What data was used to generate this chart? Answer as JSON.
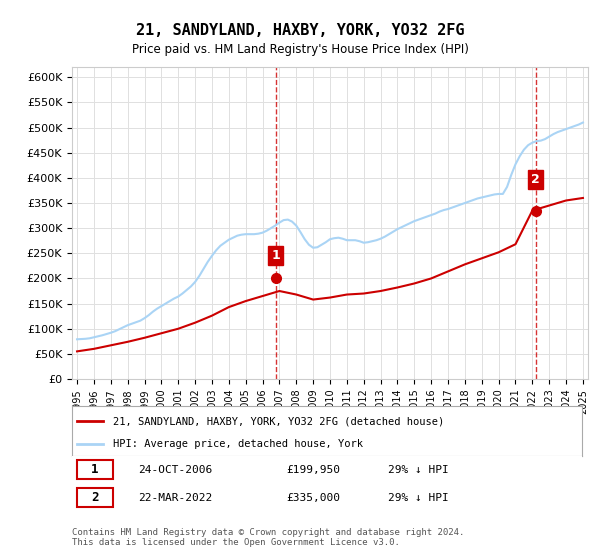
{
  "title": "21, SANDYLAND, HAXBY, YORK, YO32 2FG",
  "subtitle": "Price paid vs. HM Land Registry's House Price Index (HPI)",
  "xlabel": "",
  "ylabel": "",
  "ylim": [
    0,
    620000
  ],
  "yticks": [
    0,
    50000,
    100000,
    150000,
    200000,
    250000,
    300000,
    350000,
    400000,
    450000,
    500000,
    550000,
    600000
  ],
  "ytick_labels": [
    "£0",
    "£50K",
    "£100K",
    "£150K",
    "£200K",
    "£250K",
    "£300K",
    "£350K",
    "£400K",
    "£450K",
    "£500K",
    "£550K",
    "£600K"
  ],
  "hpi_color": "#aad4f5",
  "price_color": "#cc0000",
  "annotation1_color": "#cc0000",
  "annotation2_color": "#cc0000",
  "vline_color": "#cc0000",
  "legend_line1": "21, SANDYLAND, HAXBY, YORK, YO32 2FG (detached house)",
  "legend_line2": "HPI: Average price, detached house, York",
  "table_row1": [
    "1",
    "24-OCT-2006",
    "£199,950",
    "29% ↓ HPI"
  ],
  "table_row2": [
    "2",
    "22-MAR-2022",
    "£335,000",
    "29% ↓ HPI"
  ],
  "footnote": "Contains HM Land Registry data © Crown copyright and database right 2024.\nThis data is licensed under the Open Government Licence v3.0.",
  "x_start_year": 1995,
  "x_end_year": 2025,
  "sale1_year": 2006.82,
  "sale1_price": 199950,
  "sale2_year": 2022.23,
  "sale2_price": 335000,
  "background_color": "#ffffff",
  "plot_bg_color": "#ffffff",
  "grid_color": "#e0e0e0",
  "hpi_data_years": [
    1995.0,
    1995.25,
    1995.5,
    1995.75,
    1996.0,
    1996.25,
    1996.5,
    1996.75,
    1997.0,
    1997.25,
    1997.5,
    1997.75,
    1998.0,
    1998.25,
    1998.5,
    1998.75,
    1999.0,
    1999.25,
    1999.5,
    1999.75,
    2000.0,
    2000.25,
    2000.5,
    2000.75,
    2001.0,
    2001.25,
    2001.5,
    2001.75,
    2002.0,
    2002.25,
    2002.5,
    2002.75,
    2003.0,
    2003.25,
    2003.5,
    2003.75,
    2004.0,
    2004.25,
    2004.5,
    2004.75,
    2005.0,
    2005.25,
    2005.5,
    2005.75,
    2006.0,
    2006.25,
    2006.5,
    2006.75,
    2007.0,
    2007.25,
    2007.5,
    2007.75,
    2008.0,
    2008.25,
    2008.5,
    2008.75,
    2009.0,
    2009.25,
    2009.5,
    2009.75,
    2010.0,
    2010.25,
    2010.5,
    2010.75,
    2011.0,
    2011.25,
    2011.5,
    2011.75,
    2012.0,
    2012.25,
    2012.5,
    2012.75,
    2013.0,
    2013.25,
    2013.5,
    2013.75,
    2014.0,
    2014.25,
    2014.5,
    2014.75,
    2015.0,
    2015.25,
    2015.5,
    2015.75,
    2016.0,
    2016.25,
    2016.5,
    2016.75,
    2017.0,
    2017.25,
    2017.5,
    2017.75,
    2018.0,
    2018.25,
    2018.5,
    2018.75,
    2019.0,
    2019.25,
    2019.5,
    2019.75,
    2020.0,
    2020.25,
    2020.5,
    2020.75,
    2021.0,
    2021.25,
    2021.5,
    2021.75,
    2022.0,
    2022.25,
    2022.5,
    2022.75,
    2023.0,
    2023.25,
    2023.5,
    2023.75,
    2024.0,
    2024.25,
    2024.5,
    2024.75,
    2025.0
  ],
  "hpi_data_values": [
    79000,
    79500,
    80000,
    81000,
    83000,
    85000,
    87000,
    89500,
    92000,
    95000,
    99000,
    103000,
    107000,
    110000,
    113000,
    116000,
    121000,
    127000,
    134000,
    140000,
    145000,
    150000,
    155000,
    160000,
    164000,
    170000,
    177000,
    184000,
    193000,
    205000,
    219000,
    233000,
    245000,
    256000,
    265000,
    271000,
    277000,
    281000,
    285000,
    287000,
    288000,
    288000,
    288000,
    289000,
    291000,
    295000,
    300000,
    305000,
    311000,
    316000,
    317000,
    313000,
    305000,
    292000,
    278000,
    267000,
    261000,
    262000,
    267000,
    272000,
    278000,
    280000,
    281000,
    279000,
    276000,
    276000,
    276000,
    274000,
    271000,
    272000,
    274000,
    276000,
    279000,
    283000,
    288000,
    293000,
    298000,
    302000,
    306000,
    310000,
    314000,
    317000,
    320000,
    323000,
    326000,
    329000,
    333000,
    336000,
    338000,
    341000,
    344000,
    347000,
    350000,
    353000,
    356000,
    359000,
    361000,
    363000,
    365000,
    367000,
    368000,
    368000,
    382000,
    406000,
    427000,
    443000,
    456000,
    465000,
    470000,
    473000,
    474000,
    477000,
    482000,
    487000,
    491000,
    494000,
    497000,
    500000,
    503000,
    506000,
    510000
  ],
  "price_data_years": [
    1995.0,
    1996.0,
    1997.0,
    1998.0,
    1999.0,
    2000.0,
    2001.0,
    2002.0,
    2003.0,
    2004.0,
    2005.0,
    2006.0,
    2007.0,
    2008.0,
    2009.0,
    2010.0,
    2011.0,
    2012.0,
    2013.0,
    2014.0,
    2015.0,
    2016.0,
    2017.0,
    2018.0,
    2019.0,
    2020.0,
    2021.0,
    2022.0,
    2023.0,
    2024.0,
    2025.0
  ],
  "price_data_values": [
    55000,
    60000,
    67000,
    74000,
    82000,
    91000,
    100000,
    112000,
    126000,
    143000,
    155000,
    165000,
    175000,
    168000,
    158000,
    162000,
    168000,
    170000,
    175000,
    182000,
    190000,
    200000,
    214000,
    228000,
    240000,
    252000,
    268000,
    335000,
    345000,
    355000,
    360000
  ]
}
